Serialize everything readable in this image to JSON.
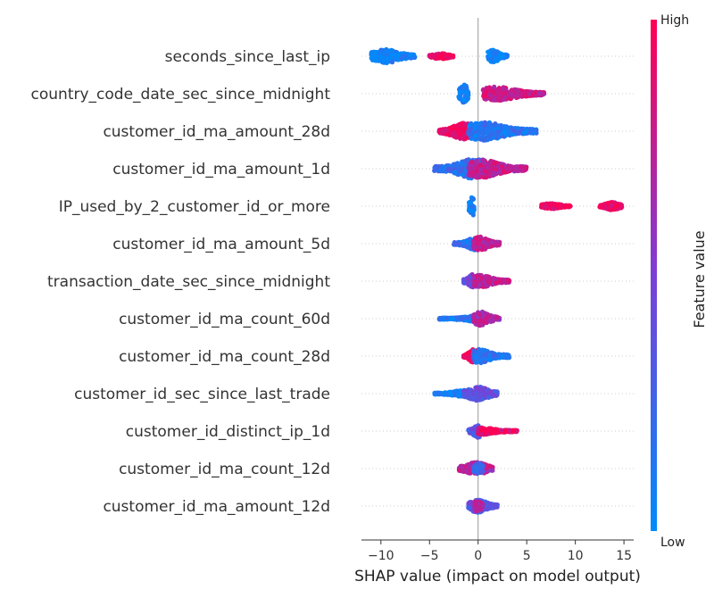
{
  "chart_data": {
    "type": "scatter",
    "subtype": "shap-beeswarm",
    "xlabel": "SHAP value (impact on model output)",
    "xticks": [
      -10,
      -5,
      0,
      5,
      10,
      15
    ],
    "xlim": [
      -12,
      16
    ],
    "colorbar": {
      "title": "Feature value",
      "high_label": "High",
      "low_label": "Low",
      "low_color": "#008bfb",
      "high_color": "#ff0052"
    },
    "features": [
      {
        "name": "seconds_since_last_ip",
        "clusters": [
          {
            "from": -11,
            "to": -6.5,
            "center": -9.5,
            "width": 0.6,
            "feature_value": 0.05
          },
          {
            "from": -5,
            "to": -2.5,
            "center": -3.8,
            "width": 0.25,
            "feature_value": 0.95
          },
          {
            "from": 1,
            "to": 3,
            "center": 1.5,
            "width": 0.55,
            "feature_value": 0.05
          }
        ]
      },
      {
        "name": "country_code_date_sec_since_midnight",
        "clusters": [
          {
            "from": -2,
            "to": -1,
            "center": -1.5,
            "width": 0.8,
            "feature_value": 0.08
          },
          {
            "from": 0.5,
            "to": 6.8,
            "center": 2,
            "width": 0.6,
            "feature_value": 0.8
          }
        ]
      },
      {
        "name": "customer_id_ma_amount_28d",
        "clusters": [
          {
            "from": -4,
            "to": 0,
            "center": -1.5,
            "width": 0.7,
            "feature_value": 0.9
          },
          {
            "from": -1,
            "to": 6,
            "center": 0.5,
            "width": 0.8,
            "feature_value": 0.15
          }
        ]
      },
      {
        "name": "customer_id_ma_amount_1d",
        "clusters": [
          {
            "from": -4.5,
            "to": 1,
            "center": -0.5,
            "width": 0.85,
            "feature_value": 0.2
          },
          {
            "from": -1,
            "to": 5,
            "center": 0.3,
            "width": 0.8,
            "feature_value": 0.75
          }
        ]
      },
      {
        "name": "IP_used_by_2_customer_id_or_more",
        "clusters": [
          {
            "from": -1,
            "to": -0.4,
            "center": -0.6,
            "width": 0.8,
            "feature_value": 0.05
          },
          {
            "from": 6.5,
            "to": 9.5,
            "center": 7.5,
            "width": 0.25,
            "feature_value": 0.95
          },
          {
            "from": 12.5,
            "to": 14.8,
            "center": 13.8,
            "width": 0.35,
            "feature_value": 0.95
          }
        ]
      },
      {
        "name": "customer_id_ma_amount_5d",
        "clusters": [
          {
            "from": -2.5,
            "to": 0,
            "center": -0.3,
            "width": 0.55,
            "feature_value": 0.15
          },
          {
            "from": -0.5,
            "to": 2.2,
            "center": 0.2,
            "width": 0.6,
            "feature_value": 0.75
          }
        ]
      },
      {
        "name": "transaction_date_sec_since_midnight",
        "clusters": [
          {
            "from": -1.5,
            "to": 0,
            "center": -0.5,
            "width": 0.6,
            "feature_value": 0.45
          },
          {
            "from": -0.5,
            "to": 3.2,
            "center": 0.2,
            "width": 0.55,
            "feature_value": 0.75
          }
        ]
      },
      {
        "name": "customer_id_ma_count_60d",
        "clusters": [
          {
            "from": -4,
            "to": 0,
            "center": 0,
            "width": 0.3,
            "feature_value": 0.1
          },
          {
            "from": -0.5,
            "to": 2.2,
            "center": 0.3,
            "width": 0.6,
            "feature_value": 0.7
          }
        ]
      },
      {
        "name": "customer_id_ma_count_28d",
        "clusters": [
          {
            "from": -1.5,
            "to": 0,
            "center": -0.4,
            "width": 0.6,
            "feature_value": 0.9
          },
          {
            "from": -0.5,
            "to": 3.2,
            "center": 0.1,
            "width": 0.6,
            "feature_value": 0.15
          }
        ]
      },
      {
        "name": "customer_id_sec_since_last_trade",
        "clusters": [
          {
            "from": -4.5,
            "to": -1,
            "center": -1.5,
            "width": 0.3,
            "feature_value": 0.05
          },
          {
            "from": -1.5,
            "to": 2,
            "center": 0,
            "width": 0.6,
            "feature_value": 0.4
          }
        ]
      },
      {
        "name": "customer_id_distinct_ip_1d",
        "clusters": [
          {
            "from": -1,
            "to": 0.5,
            "center": 0,
            "width": 0.55,
            "feature_value": 0.35
          },
          {
            "from": 0,
            "to": 4,
            "center": 0.5,
            "width": 0.3,
            "feature_value": 0.92
          }
        ]
      },
      {
        "name": "customer_id_ma_count_12d",
        "clusters": [
          {
            "from": -2,
            "to": 1.5,
            "center": -0.2,
            "width": 0.55,
            "feature_value": 0.7
          },
          {
            "from": -0.5,
            "to": 0.5,
            "center": 0,
            "width": 0.5,
            "feature_value": 0.3
          }
        ]
      },
      {
        "name": "customer_id_ma_amount_12d",
        "clusters": [
          {
            "from": -1,
            "to": 2,
            "center": 0,
            "width": 0.55,
            "feature_value": 0.35
          },
          {
            "from": -0.5,
            "to": 0.5,
            "center": -0.1,
            "width": 0.45,
            "feature_value": 0.7
          }
        ]
      }
    ]
  }
}
